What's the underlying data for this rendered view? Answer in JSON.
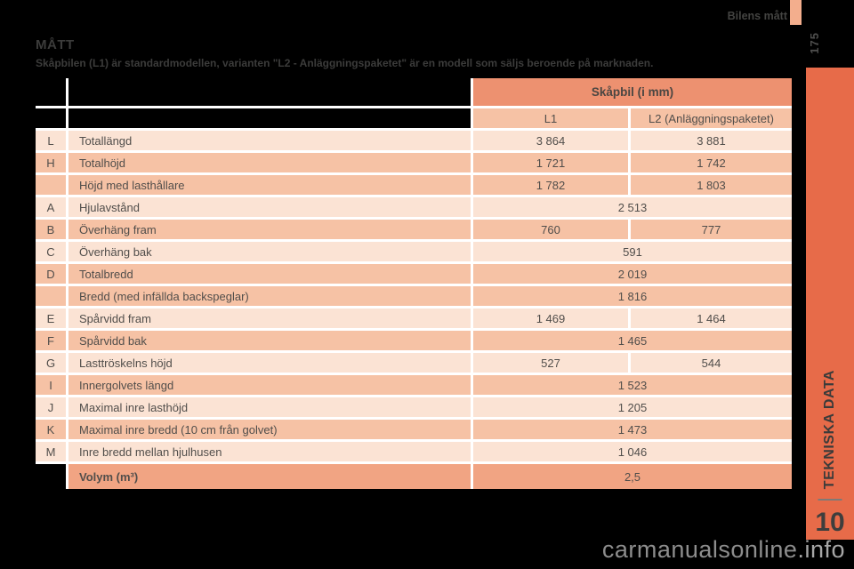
{
  "page": {
    "running_header": "Bilens mått",
    "page_number": "175",
    "title": "MÅTT",
    "subtitle": "Skåpbilen (L1) är standardmodellen, varianten \"L2 - Anläggningspaketet\" är en modell som säljs beroende på marknaden.",
    "chapter_label": "TEKNISKA DATA",
    "chapter_number": "10",
    "watermark_main": "carmanualsonline",
    "watermark_suffix": ".info"
  },
  "colors": {
    "page_background": "#000000",
    "grid_lines": "#FFFFFF",
    "table_header_dark": "#ED9170",
    "table_header_light": "#F6C2A5",
    "row_light": "#FBE3D4",
    "row_medium": "#F6C2A5",
    "row_volym": "#F1A483",
    "sidebar_orange": "#E76B49",
    "header_tab_salmon": "#F3AE8D",
    "text_dark": "#3C3C3B"
  },
  "table": {
    "header": {
      "title": "Skåpbil (i mm)",
      "col_l1": "L1",
      "col_l2": "L2 (Anläggningspaketet)"
    },
    "rows": [
      {
        "letter": "L",
        "label": "Totallängd",
        "values": [
          "3 864",
          "3 881"
        ],
        "shade": "light"
      },
      {
        "letter": "H",
        "label": "Totalhöjd",
        "values": [
          "1 721",
          "1 742"
        ],
        "shade": "med"
      },
      {
        "letter": "",
        "label": "Höjd med lasthållare",
        "values": [
          "1 782",
          "1 803"
        ],
        "shade": "med"
      },
      {
        "letter": "A",
        "label": "Hjulavstånd",
        "values": [
          "2 513"
        ],
        "shade": "light"
      },
      {
        "letter": "B",
        "label": "Överhäng fram",
        "values": [
          "760",
          "777"
        ],
        "shade": "med"
      },
      {
        "letter": "C",
        "label": "Överhäng bak",
        "values": [
          "591"
        ],
        "shade": "light"
      },
      {
        "letter": "D",
        "label": "Totalbredd",
        "values": [
          "2 019"
        ],
        "shade": "med"
      },
      {
        "letter": "",
        "label": "Bredd (med infällda backspeglar)",
        "values": [
          "1 816"
        ],
        "shade": "med"
      },
      {
        "letter": "E",
        "label": "Spårvidd fram",
        "values": [
          "1 469",
          "1 464"
        ],
        "shade": "light"
      },
      {
        "letter": "F",
        "label": "Spårvidd bak",
        "values": [
          "1 465"
        ],
        "shade": "med"
      },
      {
        "letter": "G",
        "label": "Lasttröskelns höjd",
        "values": [
          "527",
          "544"
        ],
        "shade": "light"
      },
      {
        "letter": "I",
        "label": "Innergolvets längd",
        "values": [
          "1 523"
        ],
        "shade": "med"
      },
      {
        "letter": "J",
        "label": "Maximal inre lasthöjd",
        "values": [
          "1 205"
        ],
        "shade": "light"
      },
      {
        "letter": "K",
        "label": "Maximal inre bredd (10 cm från golvet)",
        "values": [
          "1 473"
        ],
        "shade": "med"
      },
      {
        "letter": "M",
        "label": "Inre bredd mellan hjulhusen",
        "values": [
          "1 046"
        ],
        "shade": "light"
      },
      {
        "letter": null,
        "label": "Volym (m³)",
        "values": [
          "2,5"
        ],
        "shade": "volym",
        "bold_label": true
      }
    ]
  }
}
